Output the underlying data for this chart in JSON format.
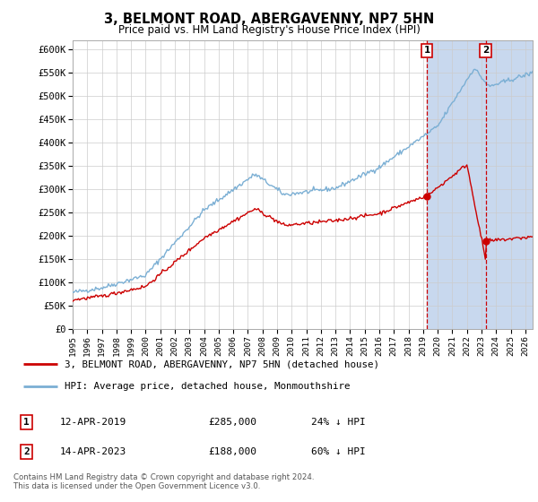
{
  "title": "3, BELMONT ROAD, ABERGAVENNY, NP7 5HN",
  "subtitle": "Price paid vs. HM Land Registry's House Price Index (HPI)",
  "ylabel_ticks": [
    "£0",
    "£50K",
    "£100K",
    "£150K",
    "£200K",
    "£250K",
    "£300K",
    "£350K",
    "£400K",
    "£450K",
    "£500K",
    "£550K",
    "£600K"
  ],
  "ytick_vals": [
    0,
    50000,
    100000,
    150000,
    200000,
    250000,
    300000,
    350000,
    400000,
    450000,
    500000,
    550000,
    600000
  ],
  "ylim": [
    0,
    620000
  ],
  "xlim_start": 1995.0,
  "xlim_end": 2026.5,
  "hpi_color": "#7bafd4",
  "price_color": "#cc0000",
  "dashed_line_color": "#cc0000",
  "marker1_x": 2019.27,
  "marker1_y": 285000,
  "marker2_x": 2023.28,
  "marker2_y": 188000,
  "legend_label1": "3, BELMONT ROAD, ABERGAVENNY, NP7 5HN (detached house)",
  "legend_label2": "HPI: Average price, detached house, Monmouthshire",
  "sale1_date": "12-APR-2019",
  "sale1_price": "£285,000",
  "sale1_hpi": "24% ↓ HPI",
  "sale2_date": "14-APR-2023",
  "sale2_price": "£188,000",
  "sale2_hpi": "60% ↓ HPI",
  "footnote": "Contains HM Land Registry data © Crown copyright and database right 2024.\nThis data is licensed under the Open Government Licence v3.0.",
  "background_color": "#ffffff",
  "grid_color": "#cccccc",
  "shade_color": "#c8d8ee"
}
